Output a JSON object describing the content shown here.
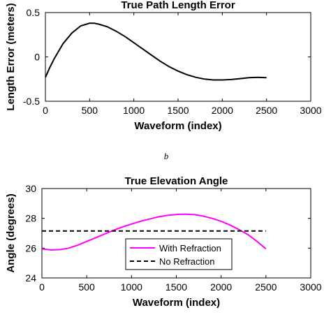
{
  "caption": "b",
  "chart_data": [
    {
      "type": "line",
      "title": "True Path Length Error",
      "xlabel": "Waveform (index)",
      "ylabel": "Length Error (meters)",
      "xlim": [
        0,
        3000
      ],
      "ylim": [
        -0.5,
        0.5
      ],
      "xticks": [
        0,
        500,
        1000,
        1500,
        2000,
        2500,
        3000
      ],
      "yticks": [
        -0.5,
        0,
        0.5
      ],
      "xtick_labels": [
        "0",
        "500",
        "1000",
        "1500",
        "2000",
        "2500",
        "3000"
      ],
      "ytick_labels": [
        "-0.5",
        "0",
        "0.5"
      ],
      "grid": false,
      "series": [
        {
          "color": "#000000",
          "style": "solid",
          "x": [
            0,
            50,
            100,
            200,
            300,
            400,
            500,
            550,
            600,
            700,
            800,
            900,
            1000,
            1100,
            1200,
            1300,
            1400,
            1500,
            1600,
            1700,
            1800,
            1900,
            2000,
            2100,
            2200,
            2300,
            2400,
            2500
          ],
          "y": [
            -0.23,
            -0.12,
            -0.02,
            0.15,
            0.27,
            0.35,
            0.38,
            0.38,
            0.37,
            0.34,
            0.29,
            0.23,
            0.16,
            0.09,
            0.02,
            -0.05,
            -0.11,
            -0.16,
            -0.2,
            -0.23,
            -0.25,
            -0.26,
            -0.26,
            -0.255,
            -0.245,
            -0.235,
            -0.23,
            -0.235
          ]
        }
      ]
    },
    {
      "type": "line",
      "title": "True Elevation Angle",
      "xlabel": "Waveform (index)",
      "ylabel": "Angle (degrees)",
      "xlim": [
        0,
        3000
      ],
      "ylim": [
        24,
        30
      ],
      "xticks": [
        0,
        500,
        1000,
        1500,
        2000,
        2500,
        3000
      ],
      "yticks": [
        24,
        26,
        28,
        30
      ],
      "xtick_labels": [
        "0",
        "500",
        "1000",
        "1500",
        "2000",
        "2500",
        "3000"
      ],
      "ytick_labels": [
        "24",
        "26",
        "28",
        "30"
      ],
      "grid": false,
      "legend": "bottom-center",
      "series": [
        {
          "name": "With Refraction",
          "color": "#ff00ff",
          "style": "solid",
          "x": [
            0,
            100,
            200,
            300,
            400,
            500,
            600,
            700,
            800,
            900,
            1000,
            1100,
            1200,
            1300,
            1400,
            1500,
            1600,
            1700,
            1800,
            1900,
            2000,
            2100,
            2200,
            2300,
            2400,
            2500
          ],
          "y": [
            25.95,
            25.88,
            25.9,
            26.0,
            26.2,
            26.45,
            26.7,
            26.95,
            27.2,
            27.42,
            27.62,
            27.8,
            27.95,
            28.1,
            28.2,
            28.26,
            28.28,
            28.25,
            28.15,
            28.0,
            27.8,
            27.55,
            27.25,
            26.9,
            26.45,
            25.95
          ]
        },
        {
          "name": "No Refraction",
          "color": "#000000",
          "style": "dashed",
          "x": [
            0,
            2500
          ],
          "y": [
            27.15,
            27.15
          ]
        }
      ]
    }
  ]
}
